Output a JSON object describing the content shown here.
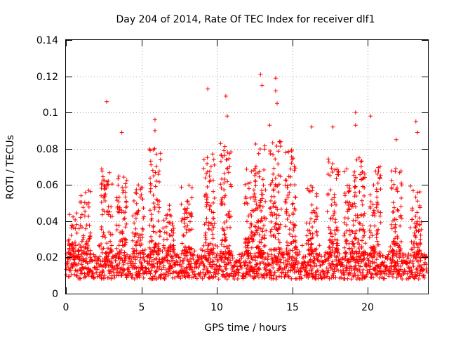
{
  "chart_data": {
    "type": "scatter",
    "title": "Day 204 of 2014, Rate Of TEC Index for receiver dlf1",
    "xlabel": "GPS time / hours",
    "ylabel": "ROTI / TECUs",
    "xlim": [
      0,
      24
    ],
    "ylim": [
      0,
      0.14
    ],
    "xticks": [
      0,
      5,
      10,
      15,
      20
    ],
    "xtick_labels": [
      "0",
      "5",
      "10",
      "15",
      "20"
    ],
    "yticks": [
      0,
      0.02,
      0.04,
      0.06,
      0.08,
      0.1,
      0.12,
      0.14
    ],
    "ytick_labels": [
      "0",
      "0.02",
      "0.04",
      "0.06",
      "0.08",
      "0.1",
      "0.12",
      "0.14"
    ],
    "grid": true,
    "marker": "+",
    "series_color": "#ff0000",
    "data_range_hours": [
      0,
      23.95
    ],
    "baseline_band": [
      0.008,
      0.022
    ],
    "notable_points": [
      {
        "x": 2.7,
        "y": 0.106
      },
      {
        "x": 3.7,
        "y": 0.089
      },
      {
        "x": 4.8,
        "y": 0.06
      },
      {
        "x": 5.9,
        "y": 0.096
      },
      {
        "x": 5.9,
        "y": 0.09
      },
      {
        "x": 9.4,
        "y": 0.113
      },
      {
        "x": 9.8,
        "y": 0.074
      },
      {
        "x": 10.6,
        "y": 0.109
      },
      {
        "x": 10.7,
        "y": 0.098
      },
      {
        "x": 12.9,
        "y": 0.121
      },
      {
        "x": 13.0,
        "y": 0.115
      },
      {
        "x": 13.9,
        "y": 0.119
      },
      {
        "x": 13.9,
        "y": 0.112
      },
      {
        "x": 14.0,
        "y": 0.105
      },
      {
        "x": 13.5,
        "y": 0.093
      },
      {
        "x": 16.3,
        "y": 0.092
      },
      {
        "x": 17.7,
        "y": 0.092
      },
      {
        "x": 19.2,
        "y": 0.1
      },
      {
        "x": 19.2,
        "y": 0.093
      },
      {
        "x": 20.2,
        "y": 0.098
      },
      {
        "x": 21.9,
        "y": 0.085
      },
      {
        "x": 23.2,
        "y": 0.095
      },
      {
        "x": 23.3,
        "y": 0.089
      }
    ],
    "activity_peaks": [
      {
        "x": 0.5,
        "peak": 0.045
      },
      {
        "x": 1.3,
        "peak": 0.058
      },
      {
        "x": 2.7,
        "peak": 0.07
      },
      {
        "x": 3.7,
        "peak": 0.065
      },
      {
        "x": 4.8,
        "peak": 0.06
      },
      {
        "x": 5.9,
        "peak": 0.08
      },
      {
        "x": 6.8,
        "peak": 0.05
      },
      {
        "x": 8.0,
        "peak": 0.06
      },
      {
        "x": 9.5,
        "peak": 0.08
      },
      {
        "x": 10.6,
        "peak": 0.085
      },
      {
        "x": 12.2,
        "peak": 0.07
      },
      {
        "x": 12.9,
        "peak": 0.09
      },
      {
        "x": 13.9,
        "peak": 0.085
      },
      {
        "x": 14.9,
        "peak": 0.08
      },
      {
        "x": 16.3,
        "peak": 0.06
      },
      {
        "x": 17.7,
        "peak": 0.075
      },
      {
        "x": 18.8,
        "peak": 0.07
      },
      {
        "x": 19.5,
        "peak": 0.075
      },
      {
        "x": 20.5,
        "peak": 0.07
      },
      {
        "x": 21.9,
        "peak": 0.07
      },
      {
        "x": 23.2,
        "peak": 0.06
      }
    ]
  }
}
